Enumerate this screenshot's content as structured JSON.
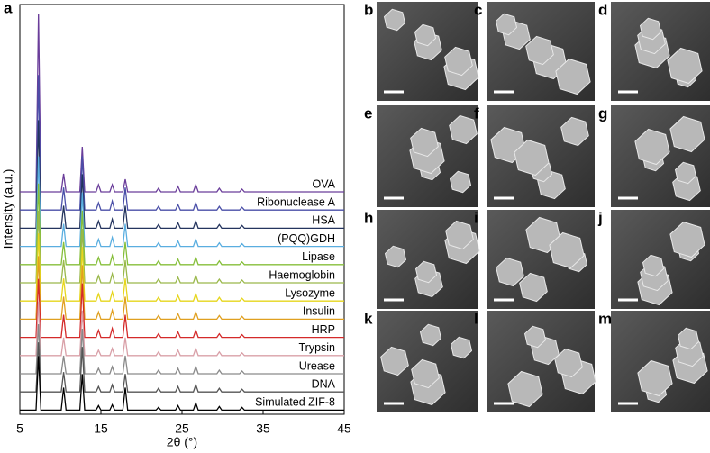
{
  "chart_data": {
    "type": "line",
    "figure_label": "a",
    "x_label": "2θ (°)",
    "y_label": "Intensity (a.u.)",
    "xlim": [
      5,
      45
    ],
    "xticks": [
      5,
      15,
      25,
      35,
      45
    ],
    "x": [
      5,
      7.0,
      7.3,
      7.6,
      10.1,
      10.4,
      10.7,
      12.4,
      12.7,
      13.0,
      14.4,
      14.7,
      15.0,
      16.1,
      16.4,
      16.7,
      17.7,
      18.0,
      18.3,
      21.8,
      22.1,
      22.4,
      24.2,
      24.5,
      24.8,
      26.4,
      26.7,
      27.0,
      29.3,
      29.6,
      29.9,
      32.1,
      32.4,
      32.7,
      45
    ],
    "series": [
      {
        "name": "OVA",
        "color": "#6a3d9a",
        "values": [
          0,
          0,
          198,
          0,
          0,
          20,
          0,
          0,
          50,
          0,
          0,
          8,
          0,
          0,
          8,
          0,
          0,
          14,
          0,
          0,
          4,
          0,
          0,
          6,
          0,
          0,
          8,
          0,
          0,
          4,
          0,
          0,
          3,
          0,
          0
        ]
      },
      {
        "name": "Ribonuclease A",
        "color": "#4a4fa8",
        "values": [
          0,
          0,
          150,
          0,
          0,
          25,
          0,
          0,
          60,
          0,
          0,
          8,
          0,
          0,
          10,
          0,
          0,
          25,
          0,
          0,
          4,
          0,
          0,
          6,
          0,
          0,
          8,
          0,
          0,
          4,
          0,
          0,
          3,
          0,
          0
        ]
      },
      {
        "name": "HSA",
        "color": "#24345e",
        "values": [
          0,
          0,
          120,
          0,
          0,
          25,
          0,
          0,
          60,
          0,
          0,
          8,
          0,
          0,
          10,
          0,
          0,
          25,
          0,
          0,
          4,
          0,
          0,
          6,
          0,
          0,
          8,
          0,
          0,
          4,
          0,
          0,
          3,
          0,
          0
        ]
      },
      {
        "name": "(PQQ)GDH",
        "color": "#5aaee0",
        "values": [
          0,
          0,
          100,
          0,
          0,
          25,
          0,
          0,
          60,
          0,
          0,
          8,
          0,
          0,
          10,
          0,
          0,
          25,
          0,
          0,
          4,
          0,
          0,
          6,
          0,
          0,
          8,
          0,
          0,
          4,
          0,
          0,
          3,
          0,
          0
        ]
      },
      {
        "name": "Lipase",
        "color": "#86bf3a",
        "values": [
          0,
          0,
          90,
          0,
          0,
          25,
          0,
          0,
          60,
          0,
          0,
          8,
          0,
          0,
          10,
          0,
          0,
          25,
          0,
          0,
          4,
          0,
          0,
          6,
          0,
          0,
          8,
          0,
          0,
          4,
          0,
          0,
          3,
          0,
          0
        ]
      },
      {
        "name": "Haemoglobin",
        "color": "#9ab84b",
        "values": [
          0,
          0,
          80,
          0,
          0,
          25,
          0,
          0,
          60,
          0,
          0,
          8,
          0,
          0,
          10,
          0,
          0,
          25,
          0,
          0,
          4,
          0,
          0,
          6,
          0,
          0,
          8,
          0,
          0,
          4,
          0,
          0,
          3,
          0,
          0
        ]
      },
      {
        "name": "Lysozyme",
        "color": "#e6d61c",
        "values": [
          0,
          0,
          75,
          0,
          0,
          25,
          0,
          0,
          60,
          0,
          0,
          8,
          0,
          0,
          10,
          0,
          0,
          25,
          0,
          0,
          4,
          0,
          0,
          6,
          0,
          0,
          8,
          0,
          0,
          4,
          0,
          0,
          3,
          0,
          0
        ]
      },
      {
        "name": "Insulin",
        "color": "#e0a020",
        "values": [
          0,
          0,
          70,
          0,
          0,
          25,
          0,
          0,
          60,
          0,
          0,
          8,
          0,
          0,
          10,
          0,
          0,
          25,
          0,
          0,
          4,
          0,
          0,
          6,
          0,
          0,
          8,
          0,
          0,
          4,
          0,
          0,
          3,
          0,
          0
        ]
      },
      {
        "name": "HRP",
        "color": "#d42a2a",
        "values": [
          0,
          0,
          65,
          0,
          0,
          25,
          0,
          0,
          60,
          0,
          0,
          8,
          0,
          0,
          10,
          0,
          0,
          25,
          0,
          0,
          4,
          0,
          0,
          6,
          0,
          0,
          8,
          0,
          0,
          4,
          0,
          0,
          3,
          0,
          0
        ]
      },
      {
        "name": "Trypsin",
        "color": "#d9a0a8",
        "values": [
          0,
          0,
          60,
          0,
          0,
          20,
          0,
          0,
          50,
          0,
          0,
          6,
          0,
          0,
          8,
          0,
          0,
          20,
          0,
          0,
          4,
          0,
          0,
          6,
          0,
          0,
          8,
          0,
          0,
          4,
          0,
          0,
          3,
          0,
          0
        ]
      },
      {
        "name": "Urease",
        "color": "#8a8a8a",
        "values": [
          0,
          0,
          55,
          0,
          0,
          20,
          0,
          0,
          50,
          0,
          0,
          6,
          0,
          0,
          8,
          0,
          0,
          20,
          0,
          0,
          4,
          0,
          0,
          6,
          0,
          0,
          8,
          0,
          0,
          4,
          0,
          0,
          3,
          0,
          0
        ]
      },
      {
        "name": "DNA",
        "color": "#555555",
        "values": [
          0,
          0,
          55,
          0,
          0,
          22,
          0,
          0,
          50,
          0,
          0,
          6,
          0,
          0,
          8,
          0,
          0,
          20,
          0,
          0,
          4,
          0,
          0,
          6,
          0,
          0,
          8,
          0,
          0,
          4,
          0,
          0,
          3,
          0,
          0
        ]
      },
      {
        "name": "Simulated ZIF-8",
        "color": "#000000",
        "values": [
          0,
          0,
          60,
          0,
          0,
          25,
          0,
          0,
          40,
          0,
          0,
          5,
          0,
          0,
          6,
          0,
          0,
          25,
          0,
          0,
          3,
          0,
          0,
          5,
          0,
          0,
          8,
          0,
          0,
          4,
          0,
          0,
          3,
          0,
          0
        ]
      }
    ]
  },
  "panels": [
    "b",
    "c",
    "d",
    "e",
    "f",
    "g",
    "h",
    "i",
    "j",
    "k",
    "l",
    "m"
  ]
}
